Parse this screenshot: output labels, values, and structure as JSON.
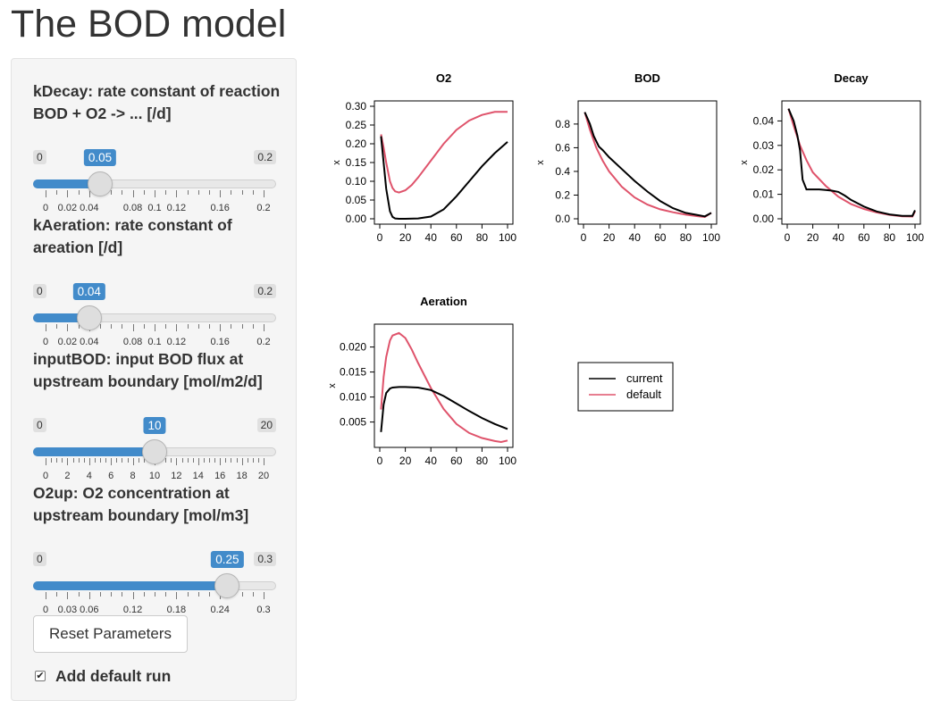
{
  "page": {
    "title": "The BOD model"
  },
  "sliders": [
    {
      "label": "kDecay: rate constant of reaction BOD + O2 -> ... [/d]",
      "min": 0,
      "max": 0.2,
      "value": 0.05,
      "min_label": "0",
      "max_label": "0.2",
      "value_label": "0.05",
      "tick_labels": [
        {
          "v": 0,
          "t": "0"
        },
        {
          "v": 0.02,
          "t": "0.02"
        },
        {
          "v": 0.04,
          "t": "0.04"
        },
        {
          "v": 0.08,
          "t": "0.08"
        },
        {
          "v": 0.1,
          "t": "0.1"
        },
        {
          "v": 0.12,
          "t": "0.12"
        },
        {
          "v": 0.16,
          "t": "0.16"
        },
        {
          "v": 0.2,
          "t": "0.2"
        }
      ]
    },
    {
      "label": "kAeration: rate constant of areation [/d]",
      "min": 0,
      "max": 0.2,
      "value": 0.04,
      "min_label": "0",
      "max_label": "0.2",
      "value_label": "0.04",
      "tick_labels": [
        {
          "v": 0,
          "t": "0"
        },
        {
          "v": 0.02,
          "t": "0.02"
        },
        {
          "v": 0.04,
          "t": "0.04"
        },
        {
          "v": 0.08,
          "t": "0.08"
        },
        {
          "v": 0.1,
          "t": "0.1"
        },
        {
          "v": 0.12,
          "t": "0.12"
        },
        {
          "v": 0.16,
          "t": "0.16"
        },
        {
          "v": 0.2,
          "t": "0.2"
        }
      ]
    },
    {
      "label": "inputBOD: input BOD flux at upstream boundary [mol/m2/d]",
      "min": 0,
      "max": 20,
      "value": 10,
      "min_label": "0",
      "max_label": "20",
      "value_label": "10",
      "tick_labels": [
        {
          "v": 0,
          "t": "0"
        },
        {
          "v": 2,
          "t": "2"
        },
        {
          "v": 4,
          "t": "4"
        },
        {
          "v": 6,
          "t": "6"
        },
        {
          "v": 8,
          "t": "8"
        },
        {
          "v": 10,
          "t": "10"
        },
        {
          "v": 12,
          "t": "12"
        },
        {
          "v": 14,
          "t": "14"
        },
        {
          "v": 16,
          "t": "16"
        },
        {
          "v": 18,
          "t": "18"
        },
        {
          "v": 20,
          "t": "20"
        }
      ]
    },
    {
      "label": "O2up: O2 concentration at upstream boundary [mol/m3]",
      "min": 0,
      "max": 0.3,
      "value": 0.25,
      "min_label": "0",
      "max_label": "0.3",
      "value_label": "0.25",
      "tick_labels": [
        {
          "v": 0,
          "t": "0"
        },
        {
          "v": 0.03,
          "t": "0.03"
        },
        {
          "v": 0.06,
          "t": "0.06"
        },
        {
          "v": 0.12,
          "t": "0.12"
        },
        {
          "v": 0.18,
          "t": "0.18"
        },
        {
          "v": 0.24,
          "t": "0.24"
        },
        {
          "v": 0.3,
          "t": "0.3"
        }
      ]
    }
  ],
  "reset_button": {
    "label": "Reset Parameters"
  },
  "default_run": {
    "label": "Add default run",
    "checked": true
  },
  "legend": {
    "items": [
      "current",
      "default"
    ]
  },
  "colors": {
    "current": "#000000",
    "default": "#DF536B",
    "accent": "#428bca"
  },
  "chart_data": [
    {
      "type": "line",
      "title": "O2",
      "xlabel": "",
      "ylabel": "x",
      "xlim": [
        0,
        100
      ],
      "ylim": [
        0,
        0.3
      ],
      "xticks": [
        0,
        20,
        40,
        60,
        80,
        100
      ],
      "yticks": [
        0,
        0.05,
        0.1,
        0.15,
        0.2,
        0.25,
        0.3
      ],
      "ytick_labels": [
        "0.00",
        "0.05",
        "0.10",
        "0.15",
        "0.20",
        "0.25",
        "0.30"
      ],
      "series": [
        {
          "name": "current",
          "x": [
            1,
            3,
            5,
            8,
            10,
            12,
            15,
            20,
            30,
            40,
            50,
            60,
            70,
            80,
            90,
            100
          ],
          "y": [
            0.22,
            0.15,
            0.08,
            0.02,
            0.005,
            0.001,
            0,
            0,
            0.001,
            0.006,
            0.025,
            0.06,
            0.1,
            0.14,
            0.175,
            0.205
          ]
        },
        {
          "name": "default",
          "x": [
            1,
            3,
            5,
            8,
            10,
            12,
            15,
            20,
            25,
            30,
            40,
            50,
            60,
            70,
            80,
            90,
            100
          ],
          "y": [
            0.225,
            0.19,
            0.15,
            0.1,
            0.082,
            0.073,
            0.07,
            0.076,
            0.09,
            0.11,
            0.155,
            0.2,
            0.237,
            0.262,
            0.277,
            0.285,
            0.285
          ]
        }
      ]
    },
    {
      "type": "line",
      "title": "BOD",
      "xlabel": "",
      "ylabel": "x",
      "xlim": [
        0,
        100
      ],
      "ylim": [
        0,
        0.95
      ],
      "xticks": [
        0,
        20,
        40,
        60,
        80,
        100
      ],
      "yticks": [
        0,
        0.2,
        0.4,
        0.6,
        0.8
      ],
      "ytick_labels": [
        "0.0",
        "0.2",
        "0.4",
        "0.6",
        "0.8"
      ],
      "series": [
        {
          "name": "current",
          "x": [
            1,
            5,
            8,
            12,
            15,
            20,
            30,
            40,
            50,
            60,
            70,
            80,
            90,
            95,
            100
          ],
          "y": [
            0.9,
            0.8,
            0.7,
            0.61,
            0.58,
            0.52,
            0.42,
            0.32,
            0.23,
            0.15,
            0.09,
            0.05,
            0.03,
            0.02,
            0.05
          ]
        },
        {
          "name": "default",
          "x": [
            1,
            5,
            10,
            15,
            20,
            30,
            40,
            50,
            60,
            70,
            80,
            90,
            95,
            100
          ],
          "y": [
            0.9,
            0.75,
            0.6,
            0.49,
            0.4,
            0.27,
            0.18,
            0.12,
            0.08,
            0.055,
            0.035,
            0.02,
            0.015,
            0.05
          ]
        }
      ]
    },
    {
      "type": "line",
      "title": "Decay",
      "xlabel": "",
      "ylabel": "x",
      "xlim": [
        0,
        100
      ],
      "ylim": [
        0,
        0.046
      ],
      "xticks": [
        0,
        20,
        40,
        60,
        80,
        100
      ],
      "yticks": [
        0,
        0.01,
        0.02,
        0.03,
        0.04
      ],
      "ytick_labels": [
        "0.00",
        "0.01",
        "0.02",
        "0.03",
        "0.04"
      ],
      "series": [
        {
          "name": "current",
          "x": [
            1,
            5,
            8,
            10,
            12,
            15,
            20,
            25,
            30,
            35,
            40,
            45,
            50,
            60,
            70,
            80,
            90,
            98,
            100
          ],
          "y": [
            0.045,
            0.04,
            0.034,
            0.028,
            0.016,
            0.012,
            0.012,
            0.012,
            0.0118,
            0.0115,
            0.011,
            0.0095,
            0.0077,
            0.005,
            0.003,
            0.0018,
            0.0012,
            0.0012,
            0.0035
          ]
        },
        {
          "name": "default",
          "x": [
            1,
            5,
            10,
            15,
            20,
            30,
            40,
            50,
            60,
            70,
            80,
            90,
            98,
            100
          ],
          "y": [
            0.045,
            0.038,
            0.03,
            0.024,
            0.019,
            0.0135,
            0.009,
            0.006,
            0.004,
            0.0026,
            0.0016,
            0.001,
            0.0009,
            0.003
          ]
        }
      ]
    },
    {
      "type": "line",
      "title": "Aeration",
      "xlabel": "",
      "ylabel": "x",
      "xlim": [
        0,
        100
      ],
      "ylim": [
        0.001,
        0.0235
      ],
      "xticks": [
        0,
        20,
        40,
        60,
        80,
        100
      ],
      "yticks": [
        0.005,
        0.01,
        0.015,
        0.02
      ],
      "ytick_labels": [
        "0.005",
        "0.010",
        "0.015",
        "0.020"
      ],
      "series": [
        {
          "name": "current",
          "x": [
            1,
            3,
            5,
            8,
            10,
            15,
            20,
            30,
            40,
            50,
            60,
            70,
            80,
            90,
            100
          ],
          "y": [
            0.003,
            0.0085,
            0.0108,
            0.0117,
            0.0119,
            0.012,
            0.012,
            0.0119,
            0.0114,
            0.0102,
            0.0087,
            0.0072,
            0.0058,
            0.0046,
            0.0036
          ]
        },
        {
          "name": "default",
          "x": [
            1,
            3,
            5,
            8,
            10,
            15,
            20,
            25,
            30,
            40,
            50,
            60,
            70,
            80,
            90,
            95,
            100
          ],
          "y": [
            0.0075,
            0.014,
            0.018,
            0.0213,
            0.0223,
            0.0228,
            0.0218,
            0.0195,
            0.0168,
            0.0118,
            0.0076,
            0.0046,
            0.0028,
            0.0018,
            0.0012,
            0.001,
            0.0013
          ]
        }
      ]
    }
  ]
}
